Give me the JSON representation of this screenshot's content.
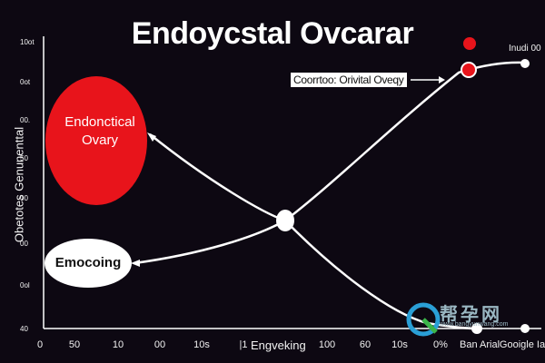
{
  "title": "Endoycstal Ovcarar",
  "y_axis_label": "Obetotes Genunenttal",
  "y_ticks": [
    "10ot",
    "0ot",
    "00.",
    "50",
    "00",
    "00",
    "0ol",
    "40"
  ],
  "x_ticks": [
    "0",
    "50",
    "10",
    "00",
    "10s",
    "|1",
    "100",
    "60",
    "10s",
    "0%"
  ],
  "x_label": "Engveking",
  "callout_label": "Coorrtoo: Orivital Oveqy",
  "right_label": "Inudi 00",
  "nodes": {
    "red_circle_label": "Endonctical Ovary",
    "white_ellipse_label": "Emocoing"
  },
  "bottom_right_labels": [
    "Ban Arial",
    "Gooigle Ia"
  ],
  "watermark": {
    "text": "帮孕网",
    "subtext": "www.bangyunwang.com"
  },
  "colors": {
    "background": "#0d0812",
    "red": "#e8141b",
    "white": "#ffffff"
  }
}
